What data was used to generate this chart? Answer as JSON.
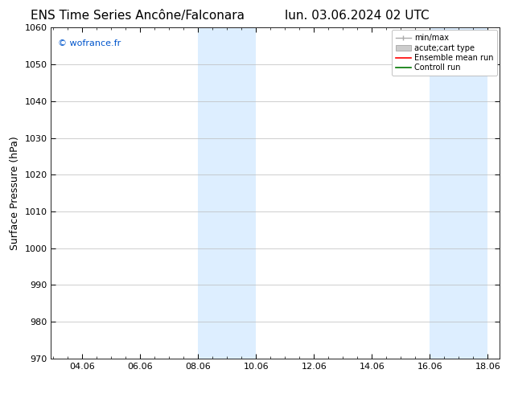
{
  "title_left": "ENS Time Series Ancône/Falconara",
  "title_right": "lun. 03.06.2024 02 UTC",
  "ylabel": "Surface Pressure (hPa)",
  "watermark": "© wofrance.fr",
  "watermark_color": "#0055cc",
  "ylim": [
    970,
    1060
  ],
  "yticks": [
    970,
    980,
    990,
    1000,
    1010,
    1020,
    1030,
    1040,
    1050,
    1060
  ],
  "xtick_labels": [
    "04.06",
    "06.06",
    "08.06",
    "10.06",
    "12.06",
    "14.06",
    "16.06",
    "18.06"
  ],
  "xtick_positions": [
    1,
    3,
    5,
    7,
    9,
    11,
    13,
    15
  ],
  "xlim": [
    -0.08333,
    15.4167
  ],
  "shaded_regions": [
    {
      "start": 5,
      "end": 7
    },
    {
      "start": 13,
      "end": 15
    }
  ],
  "shaded_color": "#ddeeff",
  "background_color": "#ffffff",
  "grid_color": "#bbbbbb",
  "legend_entries": [
    {
      "label": "min/max",
      "color": "#aaaaaa",
      "style": "errorbar"
    },
    {
      "label": "acute;cart type",
      "color": "#cccccc",
      "style": "box"
    },
    {
      "label": "Ensemble mean run",
      "color": "#ff0000",
      "style": "line"
    },
    {
      "label": "Controll run",
      "color": "#007700",
      "style": "line"
    }
  ],
  "title_fontsize": 11,
  "ylabel_fontsize": 9,
  "tick_fontsize": 8,
  "watermark_fontsize": 8,
  "legend_fontsize": 7
}
